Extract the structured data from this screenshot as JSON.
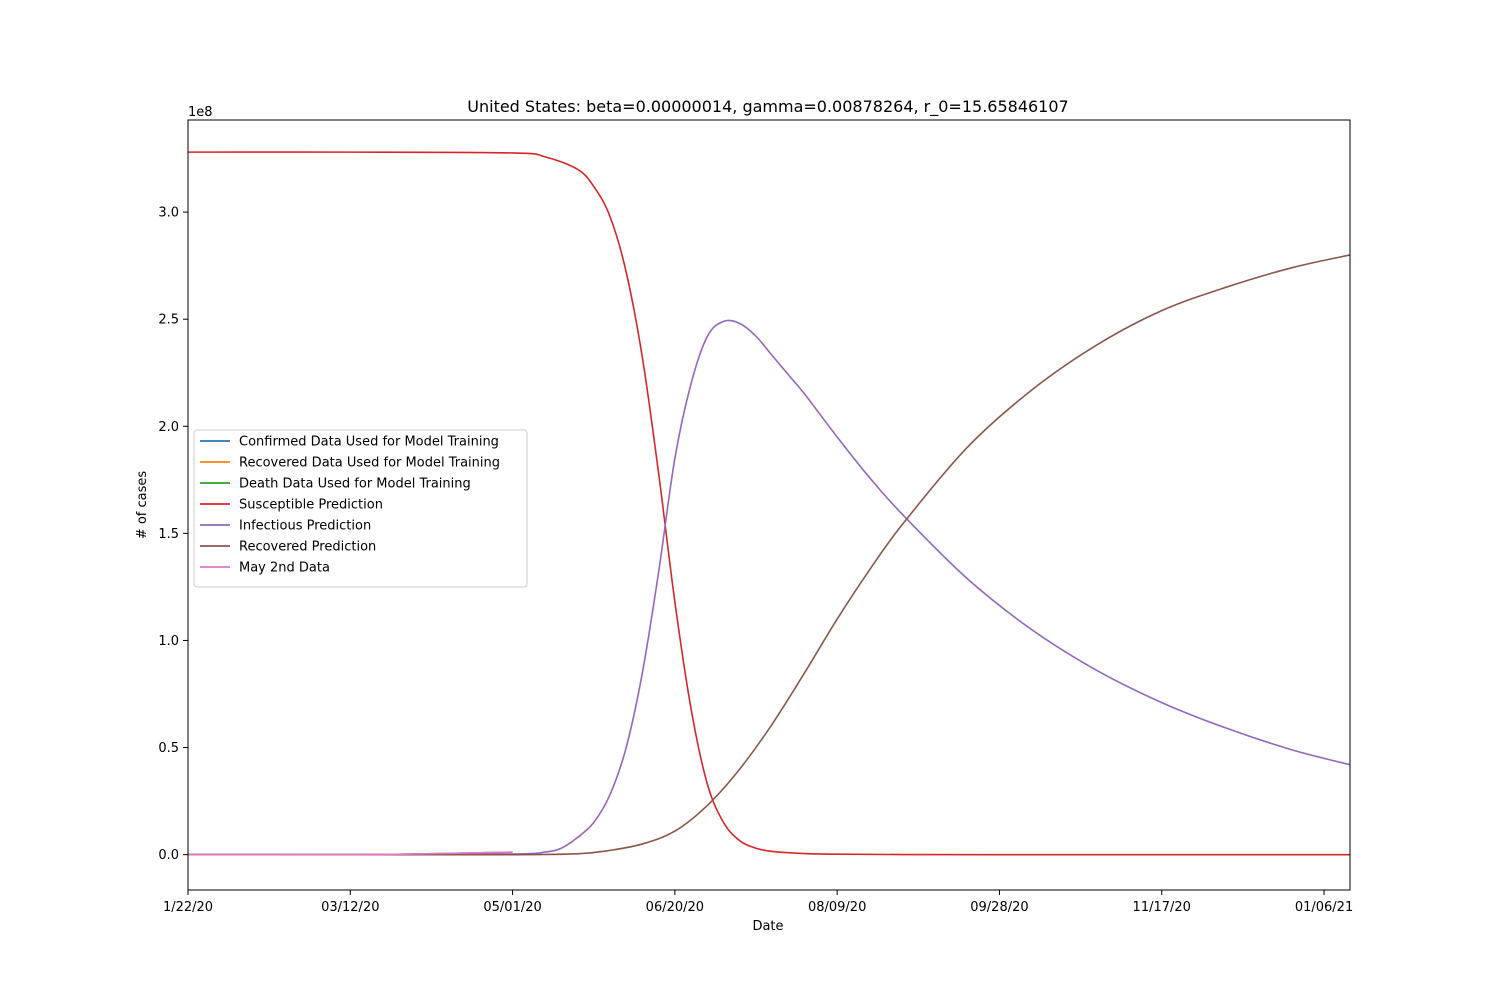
{
  "chart_data": {
    "type": "line",
    "title": "United States: beta=0.00000014, gamma=0.00878264, r_0=15.65846107",
    "xlabel": "Date",
    "ylabel": "# of cases",
    "y_offset_label": "1e8",
    "x_unit": "days since 1/22/20",
    "xlim": [
      0,
      358
    ],
    "ylim": [
      -0.165,
      3.43
    ],
    "x_ticks": [
      {
        "value": 0,
        "label": "1/22/20"
      },
      {
        "value": 50,
        "label": "03/12/20"
      },
      {
        "value": 100,
        "label": "05/01/20"
      },
      {
        "value": 150,
        "label": "06/20/20"
      },
      {
        "value": 200,
        "label": "08/09/20"
      },
      {
        "value": 250,
        "label": "09/28/20"
      },
      {
        "value": 300,
        "label": "11/17/20"
      },
      {
        "value": 350,
        "label": "01/06/21"
      }
    ],
    "y_ticks": [
      {
        "value": 0.0,
        "label": "0.0"
      },
      {
        "value": 0.5,
        "label": "0.5"
      },
      {
        "value": 1.0,
        "label": "1.0"
      },
      {
        "value": 1.5,
        "label": "1.5"
      },
      {
        "value": 2.0,
        "label": "2.0"
      },
      {
        "value": 2.5,
        "label": "2.5"
      },
      {
        "value": 3.0,
        "label": "3.0"
      }
    ],
    "legend_position": "center-left",
    "grid": false,
    "series": [
      {
        "name": "Confirmed Data Used for Model Training",
        "color": "#1f77b4",
        "x": [
          0,
          20,
          40,
          60,
          80,
          100
        ],
        "y": [
          0.0,
          0.0,
          0.0,
          0.0005,
          0.006,
          0.011
        ]
      },
      {
        "name": "Recovered Data Used for Model Training",
        "color": "#ff7f0e",
        "x": [
          0,
          20,
          40,
          60,
          80,
          100
        ],
        "y": [
          0.0,
          0.0,
          0.0,
          0.0,
          0.001,
          0.002
        ]
      },
      {
        "name": "Death Data Used for Model Training",
        "color": "#2ca02c",
        "x": [
          0,
          20,
          40,
          60,
          80,
          100
        ],
        "y": [
          0.0,
          0.0,
          0.0,
          0.0,
          0.0005,
          0.0007
        ]
      },
      {
        "name": "Susceptible Prediction",
        "color": "#d62728",
        "x": [
          0,
          50,
          100,
          110,
          120,
          125,
          130,
          135,
          140,
          145,
          150,
          155,
          160,
          165,
          170,
          175,
          180,
          190,
          200,
          220,
          250,
          300,
          358
        ],
        "y": [
          3.28,
          3.28,
          3.276,
          3.258,
          3.2,
          3.12,
          2.98,
          2.72,
          2.32,
          1.78,
          1.18,
          0.68,
          0.33,
          0.15,
          0.065,
          0.03,
          0.015,
          0.005,
          0.002,
          0.0005,
          0.0,
          0.0,
          0.0
        ]
      },
      {
        "name": "Infectious Prediction",
        "color": "#9467bd",
        "x": [
          0,
          50,
          100,
          110,
          115,
          120,
          125,
          130,
          135,
          140,
          145,
          150,
          155,
          160,
          165,
          170,
          175,
          180,
          185,
          190,
          200,
          210,
          220,
          240,
          260,
          280,
          300,
          320,
          340,
          358
        ],
        "y": [
          0.0,
          0.0,
          0.003,
          0.012,
          0.03,
          0.08,
          0.15,
          0.28,
          0.5,
          0.85,
          1.32,
          1.85,
          2.2,
          2.42,
          2.49,
          2.48,
          2.42,
          2.33,
          2.24,
          2.15,
          1.95,
          1.76,
          1.59,
          1.29,
          1.05,
          0.86,
          0.71,
          0.59,
          0.49,
          0.42
        ]
      },
      {
        "name": "Recovered Prediction",
        "color": "#8c564b",
        "x": [
          0,
          50,
          100,
          120,
          130,
          140,
          150,
          160,
          170,
          180,
          190,
          200,
          210,
          220,
          240,
          260,
          280,
          300,
          320,
          340,
          358
        ],
        "y": [
          0.0,
          0.0,
          0.0,
          0.004,
          0.02,
          0.05,
          0.11,
          0.23,
          0.4,
          0.61,
          0.85,
          1.1,
          1.33,
          1.54,
          1.9,
          2.17,
          2.38,
          2.54,
          2.65,
          2.74,
          2.8
        ]
      },
      {
        "name": "May 2nd Data",
        "color": "#e377c2",
        "x": [
          0,
          20,
          40,
          60,
          80,
          100
        ],
        "y": [
          0.0,
          0.0,
          0.0005,
          0.001,
          0.006,
          0.012
        ]
      }
    ]
  }
}
